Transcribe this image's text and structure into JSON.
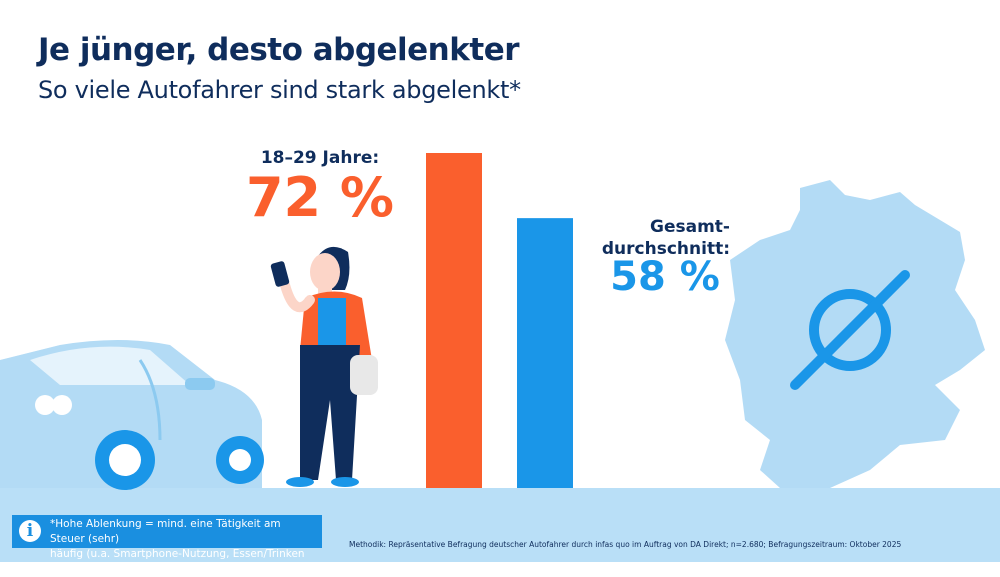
{
  "header": {
    "title": "Je jünger, desto abgelenkter",
    "subtitle": "So viele Autofahrer sind stark abgelenkt*"
  },
  "chart_data": {
    "type": "bar",
    "categories": [
      "18–29 Jahre:",
      "Gesamt-durchschnitt:"
    ],
    "values": [
      72,
      58
    ],
    "unit": "%",
    "colors": [
      "#fa5f2d",
      "#1a96e8"
    ],
    "labels": [
      {
        "name": "18–29 Jahre:",
        "value": "72 %"
      },
      {
        "name_lines": [
          "Gesamt-",
          "durchschnitt:"
        ],
        "value": "58 %"
      }
    ],
    "ylim": [
      0,
      72
    ]
  },
  "footnote": {
    "icon": "info-icon",
    "line1": "*Hohe Ablenkung = mind. eine Tätigkeit am Steuer (sehr)",
    "line2": "häufig (u.a. Smartphone-Nutzung, Essen/Trinken etc. )"
  },
  "method": "Methodik: Repräsentative Befragung deutscher Autofahrer durch infas quo im Auftrag von DA Direkt; n=2.680; Befragungszeitraum: Oktober 2025",
  "illustrations": {
    "car": "car-illustration",
    "person": "woman-with-smartphone",
    "map": "germany-map-with-average-symbol"
  }
}
